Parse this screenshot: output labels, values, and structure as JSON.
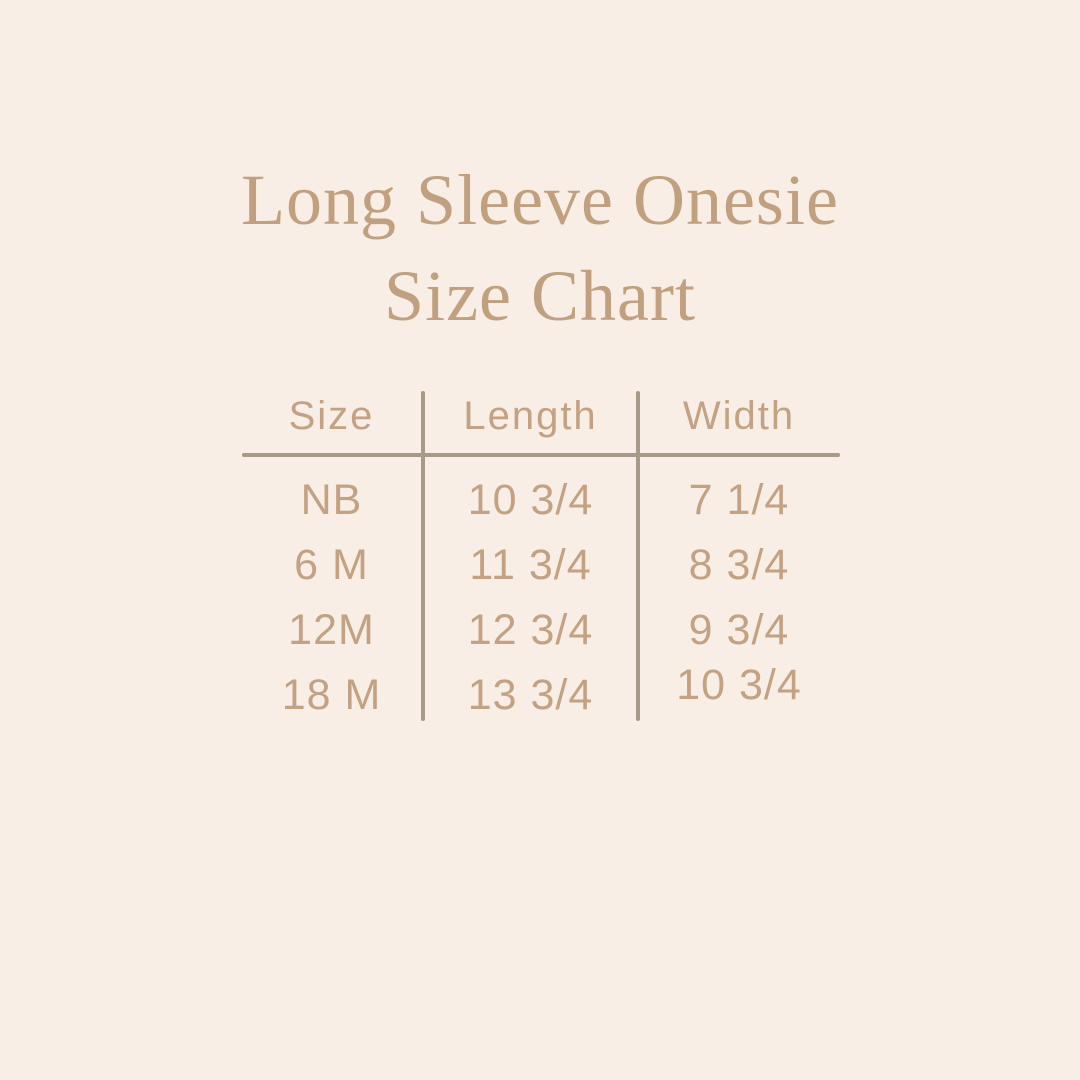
{
  "page": {
    "background_color": "#f8eee6",
    "text_color": "#c3a283",
    "title_color": "#c0a07e",
    "divider_color": "#a89a89"
  },
  "title": {
    "line1": "Long Sleeve Onesie",
    "line2": "Size Chart"
  },
  "chart_data": {
    "type": "table",
    "title": "Long Sleeve Onesie Size Chart",
    "columns": [
      "Size",
      "Length",
      "Width"
    ],
    "rows": [
      [
        "NB",
        "10 3/4",
        "7 1/4"
      ],
      [
        "6 M",
        "11 3/4",
        "8 3/4"
      ],
      [
        "12M",
        "12 3/4",
        "9 3/4"
      ],
      [
        "18 M",
        "13 3/4",
        "10 3/4"
      ]
    ]
  }
}
